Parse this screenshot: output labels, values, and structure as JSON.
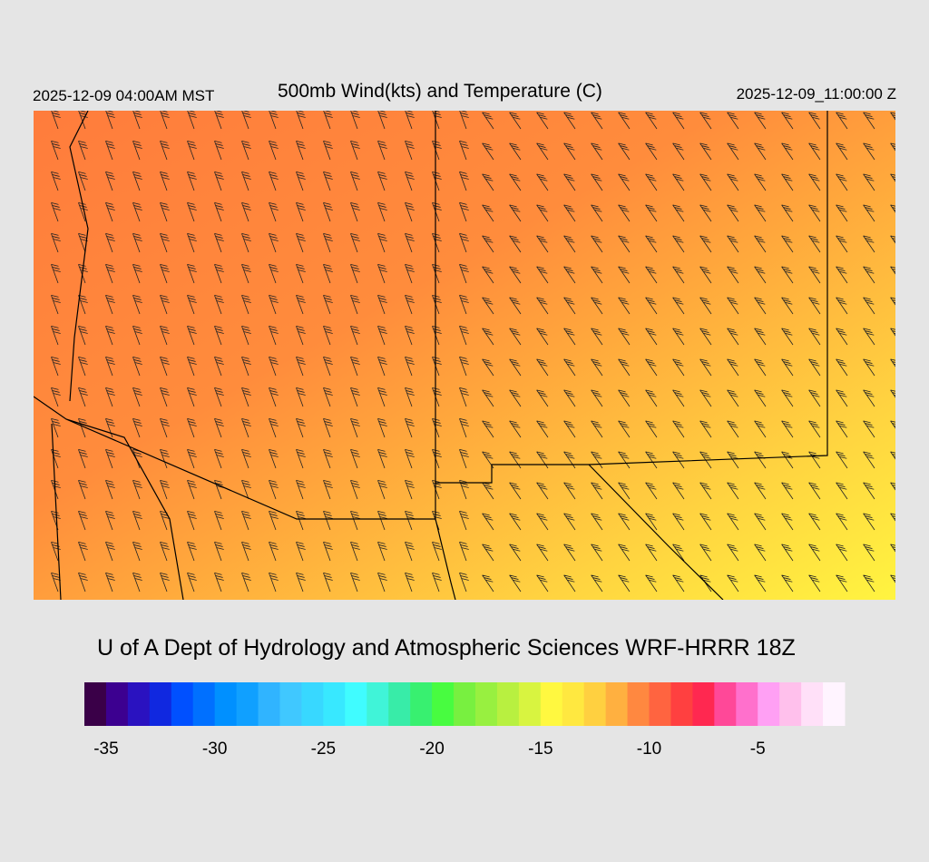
{
  "header": {
    "local_time": "2025-12-09 04:00AM MST",
    "title": "500mb Wind(kts) and Temperature (C)",
    "valid_time": "2025-12-09_11:00:00 Z"
  },
  "footer": {
    "credit": "U of A Dept of Hydrology and Atmospheric Sciences WRF-HRRR 18Z"
  },
  "colorbar": {
    "range": [
      -36,
      -1
    ],
    "ticks": [
      -35,
      -30,
      -25,
      -20,
      -15,
      -10,
      -5
    ],
    "colors": [
      "#3a0048",
      "#3c0090",
      "#2a12c0",
      "#1028e0",
      "#0050ff",
      "#0070ff",
      "#0090ff",
      "#10a0ff",
      "#30b4ff",
      "#40c8ff",
      "#38d8ff",
      "#38e8ff",
      "#40fcff",
      "#40f4d8",
      "#38eca8",
      "#38f070",
      "#48fc40",
      "#78f040",
      "#98f040",
      "#b8f040",
      "#d8f440",
      "#fff840",
      "#ffe840",
      "#ffd040",
      "#ffb040",
      "#ff8840",
      "#ff6440",
      "#ff4040",
      "#ff2850",
      "#ff4898",
      "#ff70cc",
      "#ffa0f4",
      "#ffc0ec",
      "#ffe0f8",
      "#fff4ff"
    ]
  }
}
